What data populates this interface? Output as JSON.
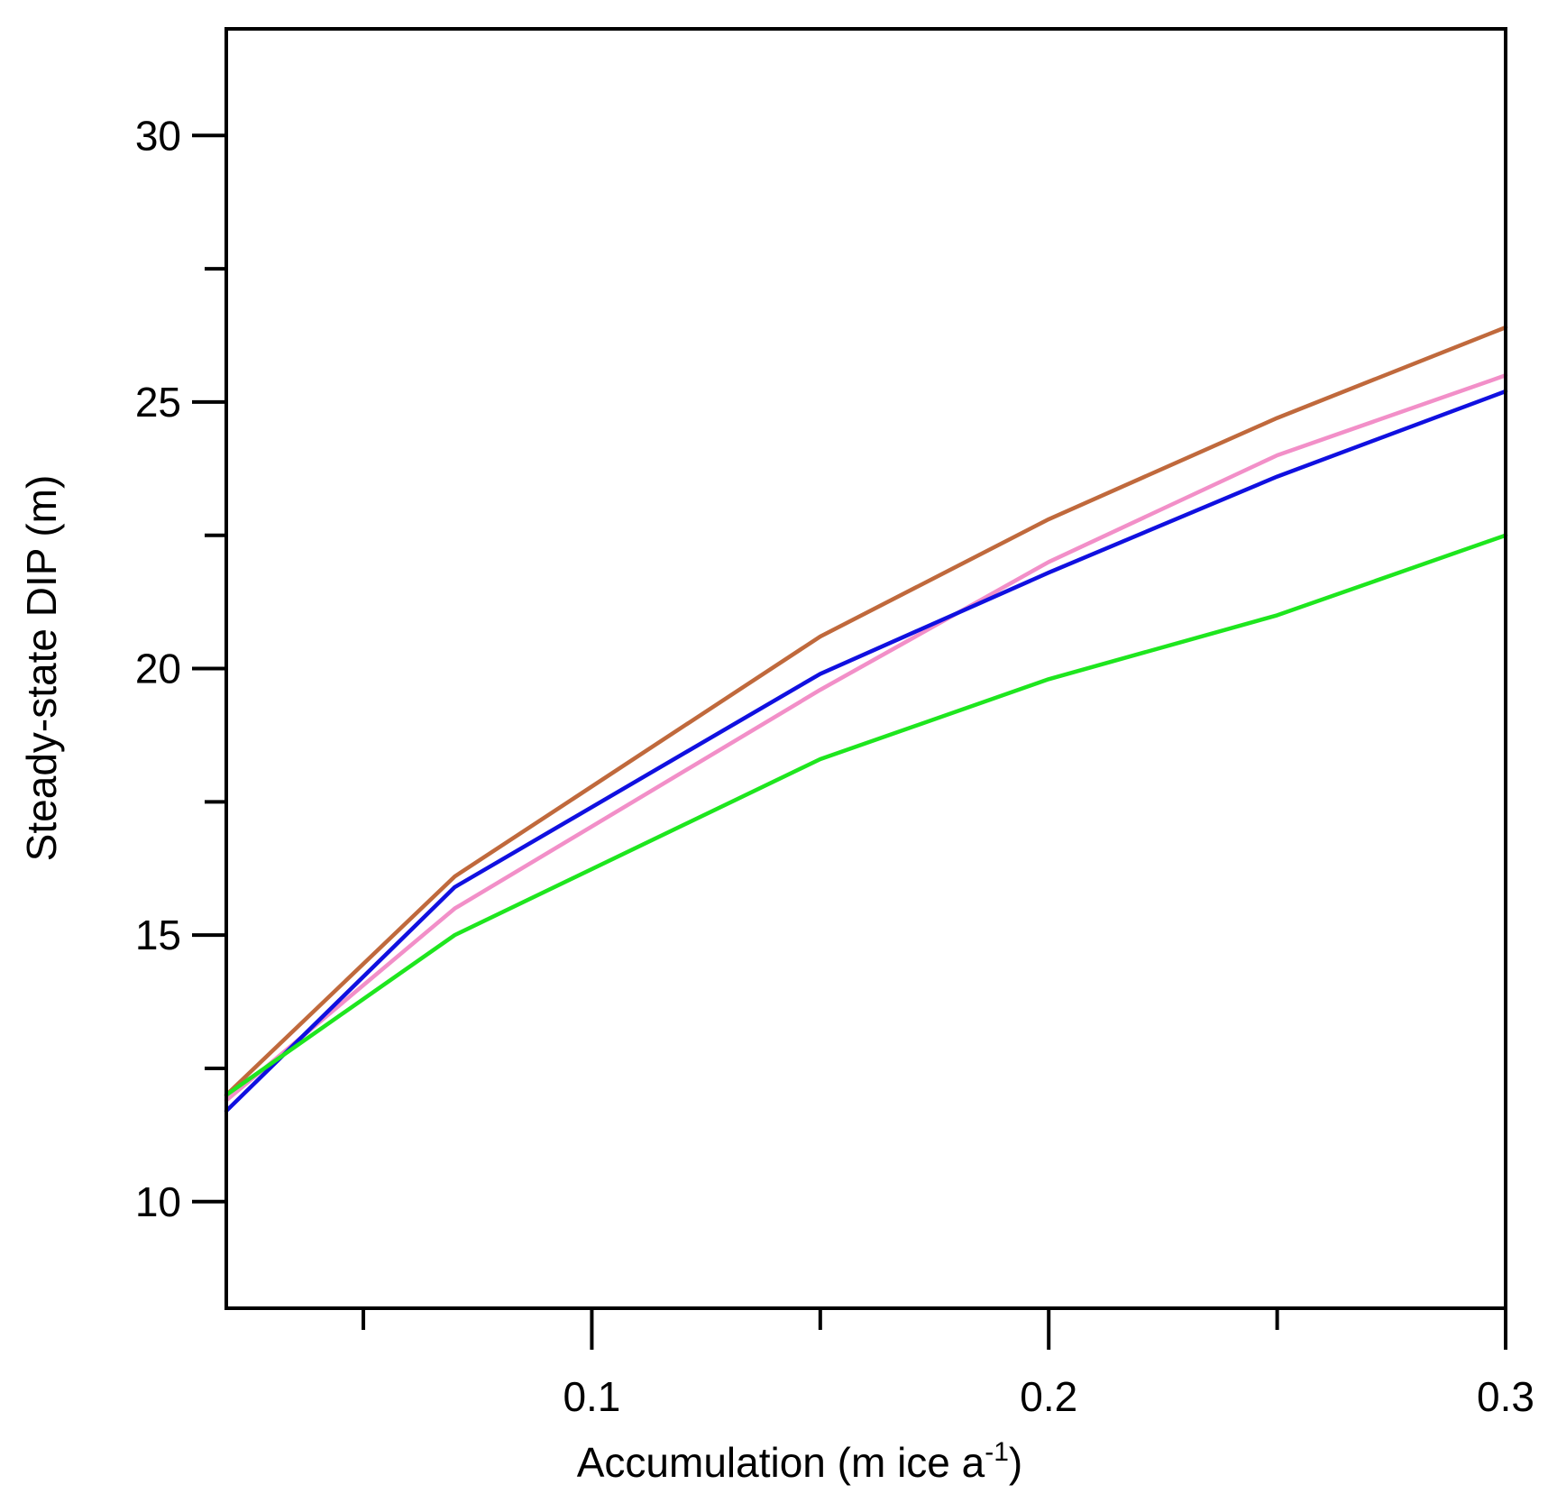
{
  "chart_data": {
    "type": "line",
    "title": "",
    "xlabel_main": "Accumulation (m ice a",
    "xlabel_sup": "-1",
    "xlabel_tail": ")",
    "ylabel": "Steady-state DIP (m)",
    "xlim": [
      0.02,
      0.3
    ],
    "ylim": [
      8,
      32
    ],
    "x_major_ticks": [
      0.1,
      0.2,
      0.3
    ],
    "x_major_tick_labels": [
      "0.1",
      "0.2",
      "0.3"
    ],
    "x_minor_ticks": [
      0.05,
      0.15,
      0.25
    ],
    "y_major_ticks": [
      10,
      15,
      20,
      25,
      30
    ],
    "y_major_tick_labels": [
      "10",
      "15",
      "20",
      "25",
      "30"
    ],
    "y_minor_ticks": [
      12.5,
      17.5,
      22.5,
      27.5
    ],
    "grid": false,
    "legend": "none",
    "x": [
      0.02,
      0.07,
      0.15,
      0.2,
      0.25,
      0.3
    ],
    "series": [
      {
        "name": "brown",
        "color": "#c0693c",
        "values": [
          12.0,
          16.1,
          20.6,
          22.8,
          24.7,
          26.4
        ]
      },
      {
        "name": "pink",
        "color": "#f28fc8",
        "values": [
          11.9,
          15.5,
          19.6,
          22.0,
          24.0,
          25.5
        ]
      },
      {
        "name": "blue",
        "color": "#1010e0",
        "values": [
          11.7,
          15.9,
          19.9,
          21.8,
          23.6,
          25.2
        ]
      },
      {
        "name": "green",
        "color": "#1ee61e",
        "values": [
          12.0,
          15.0,
          18.3,
          19.8,
          21.0,
          22.5
        ]
      }
    ]
  }
}
